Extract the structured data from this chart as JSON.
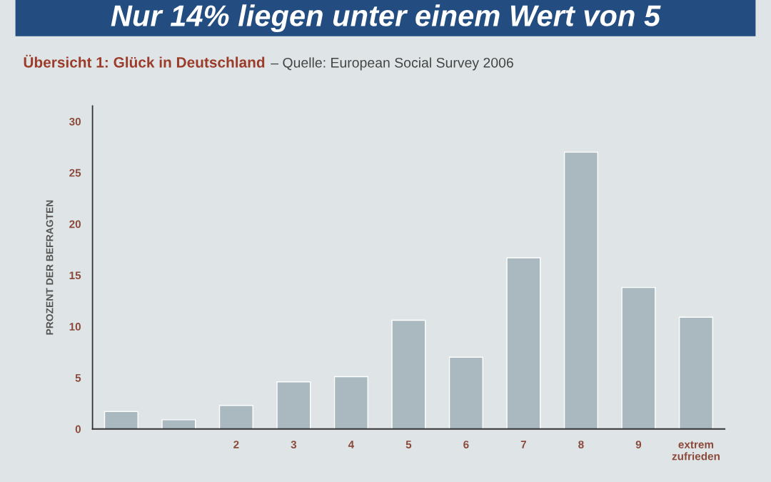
{
  "chart_data": {
    "type": "bar",
    "title": "Nur 14% liegen unter einem Wert von 5",
    "subtitle": "Übersicht 1: Glück in Deutschland",
    "annotations": [
      "– Quelle: European Social Survey 2006"
    ],
    "ylabel": "PROZENT DER BEFRAGTEN",
    "categories": [
      null,
      null,
      "2",
      "3",
      "4",
      "5",
      "6",
      "7",
      "8",
      "9",
      "extrem\nzufrieden"
    ],
    "values": [
      1.7,
      0.9,
      2.3,
      4.6,
      5.1,
      10.6,
      7.0,
      16.7,
      27.0,
      13.8,
      10.9
    ],
    "color": "#a9b9bf",
    "ylim": [
      0,
      31.5
    ],
    "yticks": [
      0,
      5,
      10,
      15,
      20,
      25,
      30
    ]
  }
}
